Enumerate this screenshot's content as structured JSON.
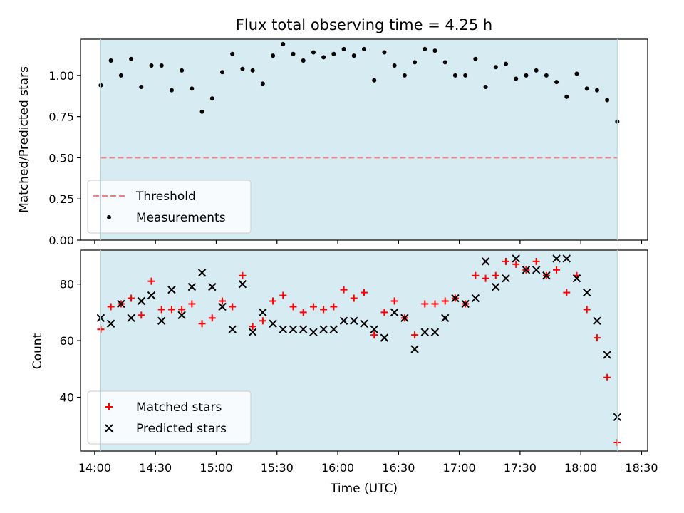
{
  "chart_data": [
    {
      "type": "scatter",
      "title": "Flux total observing time = 4.25 h",
      "xlabel": "",
      "ylabel": "Matched/Predicted stars",
      "ylim": [
        0,
        1.22
      ],
      "yticks": [
        "0.00",
        "0.25",
        "0.50",
        "0.75",
        "1.00"
      ],
      "ytick_values": [
        0,
        0.25,
        0.5,
        0.75,
        1.0
      ],
      "shaded_span": [
        "14:03",
        "18:18"
      ],
      "threshold": {
        "name": "Threshold",
        "value": 0.5,
        "color": "#f08080",
        "style": "dashed"
      },
      "series": [
        {
          "name": "Measurements",
          "marker": "dot",
          "color": "#000000",
          "x": [
            "14:03",
            "14:08",
            "14:13",
            "14:18",
            "14:23",
            "14:28",
            "14:33",
            "14:38",
            "14:43",
            "14:48",
            "14:53",
            "14:58",
            "15:03",
            "15:08",
            "15:13",
            "15:18",
            "15:23",
            "15:28",
            "15:33",
            "15:38",
            "15:43",
            "15:48",
            "15:53",
            "15:58",
            "16:03",
            "16:08",
            "16:13",
            "16:18",
            "16:23",
            "16:28",
            "16:33",
            "16:38",
            "16:43",
            "16:48",
            "16:53",
            "16:58",
            "17:03",
            "17:08",
            "17:13",
            "17:18",
            "17:23",
            "17:28",
            "17:33",
            "17:38",
            "17:43",
            "17:48",
            "17:53",
            "17:58",
            "18:03",
            "18:08",
            "18:13",
            "18:18"
          ],
          "y": [
            0.94,
            1.09,
            1.0,
            1.1,
            0.93,
            1.06,
            1.06,
            0.91,
            1.03,
            0.92,
            0.78,
            0.86,
            1.02,
            1.13,
            1.04,
            1.03,
            0.95,
            1.12,
            1.19,
            1.13,
            1.09,
            1.14,
            1.11,
            1.13,
            1.16,
            1.12,
            1.16,
            0.97,
            1.14,
            1.06,
            1.0,
            1.08,
            1.16,
            1.15,
            1.08,
            1.0,
            1.0,
            1.1,
            0.93,
            1.05,
            1.07,
            0.98,
            1.0,
            1.03,
            1.0,
            0.96,
            0.87,
            1.01,
            0.92,
            0.91,
            0.85,
            0.72
          ]
        }
      ],
      "legend": {
        "position": "lower-left",
        "entries": [
          "Threshold",
          "Measurements"
        ]
      },
      "shade_color": "#add8e6"
    },
    {
      "type": "scatter",
      "title": "",
      "xlabel": "Time (UTC)",
      "ylabel": "Count",
      "ylim": [
        21,
        92
      ],
      "yticks": [
        "40",
        "60",
        "80"
      ],
      "ytick_values": [
        40,
        60,
        80
      ],
      "xticks": [
        "14:00",
        "14:30",
        "15:00",
        "15:30",
        "16:00",
        "16:30",
        "17:00",
        "17:30",
        "18:00",
        "18:30"
      ],
      "shaded_span": [
        "14:03",
        "18:18"
      ],
      "series": [
        {
          "name": "Matched stars",
          "marker": "plus",
          "color": "#ff0000",
          "x": [
            "14:03",
            "14:08",
            "14:13",
            "14:18",
            "14:23",
            "14:28",
            "14:33",
            "14:38",
            "14:43",
            "14:48",
            "14:53",
            "14:58",
            "15:03",
            "15:08",
            "15:13",
            "15:18",
            "15:23",
            "15:28",
            "15:33",
            "15:38",
            "15:43",
            "15:48",
            "15:53",
            "15:58",
            "16:03",
            "16:08",
            "16:13",
            "16:18",
            "16:23",
            "16:28",
            "16:33",
            "16:38",
            "16:43",
            "16:48",
            "16:53",
            "16:58",
            "17:03",
            "17:08",
            "17:13",
            "17:18",
            "17:23",
            "17:28",
            "17:33",
            "17:38",
            "17:43",
            "17:48",
            "17:53",
            "17:58",
            "18:03",
            "18:08",
            "18:13",
            "18:18"
          ],
          "y": [
            64,
            72,
            73,
            75,
            69,
            81,
            71,
            71,
            71,
            73,
            66,
            68,
            74,
            72,
            83,
            65,
            67,
            74,
            76,
            72,
            70,
            72,
            71,
            72,
            78,
            75,
            77,
            62,
            70,
            74,
            68,
            62,
            73,
            73,
            74,
            75,
            73,
            83,
            82,
            83,
            88,
            87,
            85,
            88,
            83,
            85,
            77,
            83,
            71,
            61,
            47,
            24
          ]
        },
        {
          "name": "Predicted stars",
          "marker": "x",
          "color": "#000000",
          "x": [
            "14:03",
            "14:08",
            "14:13",
            "14:18",
            "14:23",
            "14:28",
            "14:33",
            "14:38",
            "14:43",
            "14:48",
            "14:53",
            "14:58",
            "15:03",
            "15:08",
            "15:13",
            "15:18",
            "15:23",
            "15:28",
            "15:33",
            "15:38",
            "15:43",
            "15:48",
            "15:53",
            "15:58",
            "16:03",
            "16:08",
            "16:13",
            "16:18",
            "16:23",
            "16:28",
            "16:33",
            "16:38",
            "16:43",
            "16:48",
            "16:53",
            "16:58",
            "17:03",
            "17:08",
            "17:13",
            "17:18",
            "17:23",
            "17:28",
            "17:33",
            "17:38",
            "17:43",
            "17:48",
            "17:53",
            "17:58",
            "18:03",
            "18:08",
            "18:13",
            "18:18"
          ],
          "y": [
            68,
            66,
            73,
            68,
            74,
            76,
            67,
            78,
            69,
            79,
            84,
            79,
            72,
            64,
            80,
            63,
            70,
            66,
            64,
            64,
            64,
            63,
            64,
            64,
            67,
            67,
            66,
            64,
            61,
            70,
            68,
            57,
            63,
            63,
            68,
            75,
            73,
            75,
            88,
            79,
            82,
            89,
            85,
            85,
            83,
            89,
            89,
            82,
            77,
            67,
            55,
            33
          ]
        }
      ],
      "legend": {
        "position": "lower-left",
        "entries": [
          "Matched stars",
          "Predicted stars"
        ]
      },
      "shade_color": "#add8e6"
    }
  ]
}
